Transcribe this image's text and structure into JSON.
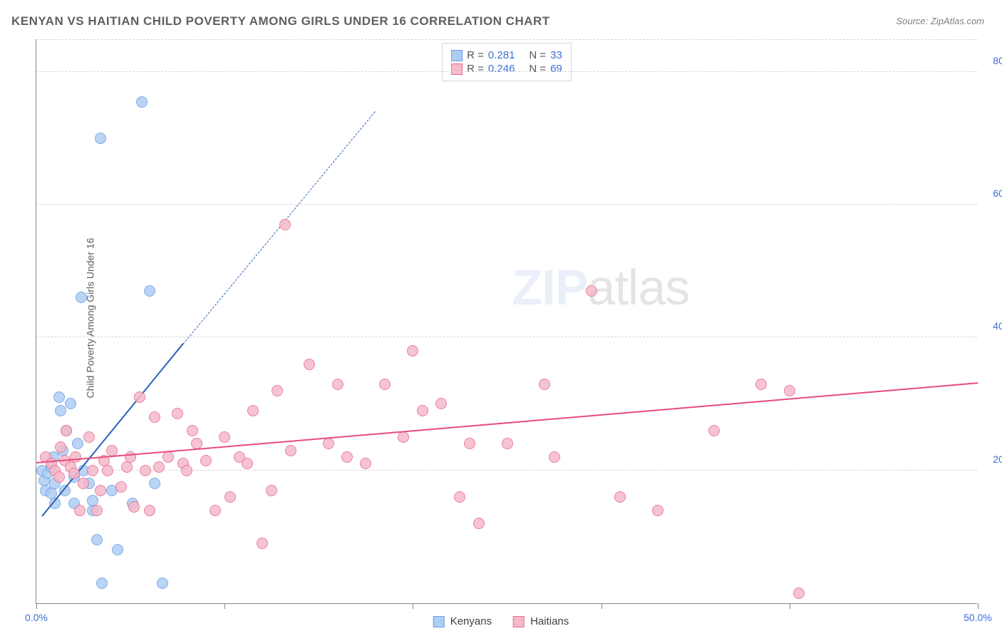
{
  "title": "KENYAN VS HAITIAN CHILD POVERTY AMONG GIRLS UNDER 16 CORRELATION CHART",
  "source": "Source: ZipAtlas.com",
  "ylabel": "Child Poverty Among Girls Under 16",
  "watermark_a": "ZIP",
  "watermark_b": "atlas",
  "chart": {
    "type": "scatter",
    "background_color": "#ffffff",
    "grid_color": "#d5d5d5",
    "axis_color": "#888888",
    "xlim": [
      0,
      50
    ],
    "ylim": [
      0,
      85
    ],
    "xticks": [
      0,
      10,
      20,
      30,
      40,
      50
    ],
    "xtick_labels": {
      "0": "0.0%",
      "50": "50.0%"
    },
    "yticks": [
      20,
      40,
      60,
      80
    ],
    "ytick_labels": {
      "20": "20.0%",
      "40": "40.0%",
      "60": "60.0%",
      "80": "80.0%"
    },
    "tick_color": "#3b6fd6",
    "tick_fontsize": 14,
    "label_fontsize": 14,
    "title_fontsize": 17,
    "marker_radius": 8,
    "marker_border_width": 1.5,
    "marker_fill_opacity": 0.22,
    "series": [
      {
        "name": "Kenyans",
        "color_border": "#6b9fe8",
        "color_fill": "#aecdf2",
        "R": "0.281",
        "N": "33",
        "trend": {
          "x1": 0.3,
          "y1": 13,
          "x2": 7.8,
          "y2": 39,
          "color": "#2e5fb8",
          "width": 2,
          "dashed_extend_to_x": 18,
          "dashed_extend_to_y": 74
        },
        "points": [
          [
            0.3,
            20
          ],
          [
            0.4,
            18.5
          ],
          [
            0.5,
            17
          ],
          [
            0.6,
            19.5
          ],
          [
            0.8,
            16.5
          ],
          [
            0.8,
            20.5
          ],
          [
            0.9,
            22
          ],
          [
            1.0,
            18
          ],
          [
            1.0,
            15
          ],
          [
            1.2,
            31
          ],
          [
            1.3,
            29
          ],
          [
            1.4,
            23
          ],
          [
            1.5,
            17
          ],
          [
            1.6,
            26
          ],
          [
            1.8,
            30
          ],
          [
            2.0,
            19
          ],
          [
            2.0,
            15
          ],
          [
            2.2,
            24
          ],
          [
            2.4,
            46
          ],
          [
            2.5,
            20
          ],
          [
            2.8,
            18
          ],
          [
            3.0,
            14
          ],
          [
            3.0,
            15.5
          ],
          [
            3.2,
            9.5
          ],
          [
            3.4,
            70
          ],
          [
            3.5,
            3
          ],
          [
            4.0,
            17
          ],
          [
            4.3,
            8
          ],
          [
            5.1,
            15
          ],
          [
            5.6,
            75.5
          ],
          [
            6.0,
            47
          ],
          [
            6.3,
            18
          ],
          [
            6.7,
            3
          ]
        ]
      },
      {
        "name": "Haitians",
        "color_border": "#e86b92",
        "color_fill": "#f5b9ca",
        "R": "0.246",
        "N": "69",
        "trend": {
          "x1": 0,
          "y1": 21,
          "x2": 50,
          "y2": 33,
          "color": "#e84b7c",
          "width": 2
        },
        "points": [
          [
            0.5,
            22
          ],
          [
            0.8,
            21
          ],
          [
            1.0,
            20
          ],
          [
            1.2,
            19
          ],
          [
            1.3,
            23.5
          ],
          [
            1.5,
            21.5
          ],
          [
            1.6,
            26
          ],
          [
            1.8,
            20.5
          ],
          [
            2.0,
            19.5
          ],
          [
            2.1,
            22
          ],
          [
            2.3,
            14
          ],
          [
            2.5,
            18
          ],
          [
            2.8,
            25
          ],
          [
            3.0,
            20
          ],
          [
            3.2,
            14
          ],
          [
            3.4,
            17
          ],
          [
            3.6,
            21.5
          ],
          [
            3.8,
            20
          ],
          [
            4.0,
            23
          ],
          [
            4.5,
            17.5
          ],
          [
            4.8,
            20.5
          ],
          [
            5.0,
            22
          ],
          [
            5.2,
            14.5
          ],
          [
            5.5,
            31
          ],
          [
            5.8,
            20
          ],
          [
            6.0,
            14
          ],
          [
            6.3,
            28
          ],
          [
            6.5,
            20.5
          ],
          [
            7.0,
            22
          ],
          [
            7.5,
            28.5
          ],
          [
            7.8,
            21
          ],
          [
            8.0,
            20
          ],
          [
            8.3,
            26
          ],
          [
            8.5,
            24
          ],
          [
            9.0,
            21.5
          ],
          [
            9.5,
            14
          ],
          [
            10.0,
            25
          ],
          [
            10.3,
            16
          ],
          [
            10.8,
            22
          ],
          [
            11.2,
            21
          ],
          [
            11.5,
            29
          ],
          [
            12.0,
            9
          ],
          [
            12.5,
            17
          ],
          [
            12.8,
            32
          ],
          [
            13.2,
            57
          ],
          [
            13.5,
            23
          ],
          [
            14.5,
            36
          ],
          [
            15.5,
            24
          ],
          [
            16.0,
            33
          ],
          [
            16.5,
            22
          ],
          [
            17.5,
            21
          ],
          [
            18.5,
            33
          ],
          [
            19.5,
            25
          ],
          [
            20.0,
            38
          ],
          [
            20.5,
            29
          ],
          [
            21.5,
            30
          ],
          [
            22.5,
            16
          ],
          [
            23.0,
            24
          ],
          [
            23.5,
            12
          ],
          [
            25.0,
            24
          ],
          [
            27.0,
            33
          ],
          [
            27.5,
            22
          ],
          [
            29.5,
            47
          ],
          [
            31.0,
            16
          ],
          [
            33.0,
            14
          ],
          [
            36.0,
            26
          ],
          [
            38.5,
            33
          ],
          [
            40.0,
            32
          ],
          [
            40.5,
            1.5
          ]
        ]
      }
    ]
  },
  "legend_top": {
    "r_label": "R  =",
    "n_label": "N  =",
    "value_color": "#3b6fd6",
    "label_color": "#555555"
  },
  "legend_bottom_items": [
    "Kenyans",
    "Haitians"
  ]
}
